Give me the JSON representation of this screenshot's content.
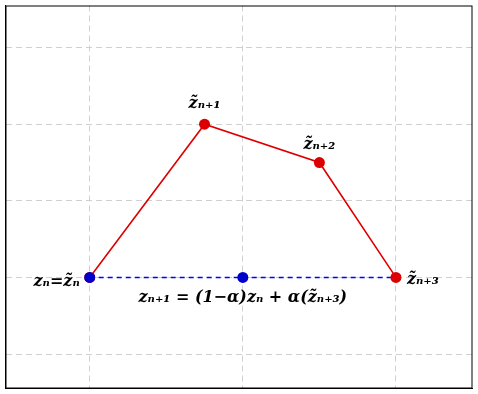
{
  "chart_data": {
    "type": "line",
    "xlim": [
      -0.55,
      2.5
    ],
    "ylim": [
      -1.45,
      3.55
    ],
    "xticks": [
      0,
      1,
      2
    ],
    "yticks": [
      -1,
      0,
      1,
      2,
      3
    ],
    "grid": true,
    "tick_labels": false,
    "series": [
      {
        "type": "line",
        "color": "#0000ff",
        "line_style": "dashed",
        "marker": "none",
        "x": [
          0,
          2
        ],
        "values": [
          0,
          0
        ]
      },
      {
        "type": "line",
        "color": "#dd0000",
        "line_style": "solid",
        "marker": "circle",
        "x": [
          0,
          0.75,
          1.5,
          2
        ],
        "values": [
          0,
          2,
          1.5,
          0
        ]
      },
      {
        "type": "scatter",
        "color": "#0000cc",
        "marker": "circle",
        "x": [
          0,
          1
        ],
        "values": [
          0,
          0
        ]
      }
    ],
    "annotations": [
      {
        "text": "zₙ=z̃ₙ",
        "x": 0,
        "y": 0
      },
      {
        "text": "z̃ₙ₊₁",
        "x": 0.75,
        "y": 2
      },
      {
        "text": "z̃ₙ₊₂",
        "x": 1.5,
        "y": 1.5
      },
      {
        "text": "z̃ₙ₊₃",
        "x": 2,
        "y": 0
      },
      {
        "text": "zₙ₊₁ = (1−α)zₙ + α(z̃ₙ₊₃)",
        "x": 1,
        "y": 0
      }
    ]
  }
}
